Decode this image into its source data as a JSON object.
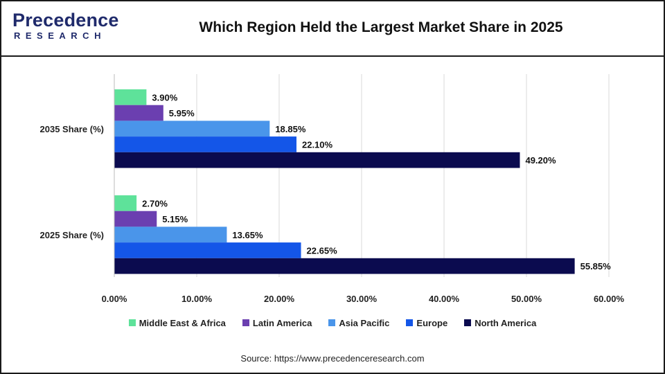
{
  "header": {
    "logo_word": "Precedence",
    "logo_sub": "RESEARCH",
    "title": "Which Region Held the Largest Market Share in 2025"
  },
  "source": "Source: https://www.precedenceresearch.com",
  "chart_data": {
    "type": "bar",
    "orientation": "horizontal",
    "categories": [
      "2035 Share (%)",
      "2025 Share (%)"
    ],
    "series": [
      {
        "name": "Middle East & Africa",
        "color": "#5ee29a",
        "values": [
          3.9,
          2.7
        ],
        "labels": [
          "3.90%",
          "2.70%"
        ]
      },
      {
        "name": "Latin America",
        "color": "#6b3fb0",
        "values": [
          5.95,
          5.15
        ],
        "labels": [
          "5.95%",
          "5.15%"
        ]
      },
      {
        "name": "Asia Pacific",
        "color": "#4a95ea",
        "values": [
          18.85,
          13.65
        ],
        "labels": [
          "18.85%",
          "13.65%"
        ]
      },
      {
        "name": "Europe",
        "color": "#1456e8",
        "values": [
          22.1,
          22.65
        ],
        "labels": [
          "22.10%",
          "22.65%"
        ]
      },
      {
        "name": "North America",
        "color": "#0b0b4f",
        "values": [
          49.2,
          55.85
        ],
        "labels": [
          "49.20%",
          "55.85%"
        ]
      }
    ],
    "xlim": [
      0,
      60
    ],
    "x_ticks": [
      0,
      10,
      20,
      30,
      40,
      50,
      60
    ],
    "x_tick_labels": [
      "0.00%",
      "10.00%",
      "20.00%",
      "30.00%",
      "40.00%",
      "50.00%",
      "60.00%"
    ],
    "grid": true,
    "legend_position": "bottom"
  }
}
